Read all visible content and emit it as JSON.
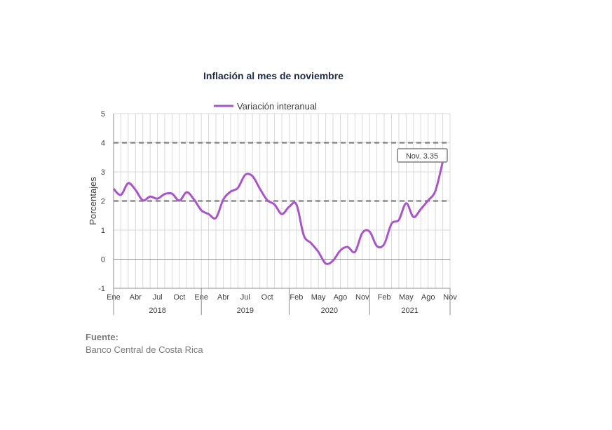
{
  "chart_data": {
    "type": "line",
    "title": "Inflación al mes de noviembre",
    "ylabel": "Porcentajes",
    "xlabel": "",
    "ylim": [
      -1,
      5
    ],
    "yticks": [
      "5",
      "4",
      "3",
      "2",
      "1",
      "0",
      "-1"
    ],
    "grid": true,
    "legend_position": "top",
    "reference_lines": [
      {
        "y": 4,
        "style": "dashed",
        "color": "#7f7f7f"
      },
      {
        "y": 2,
        "style": "dashed",
        "color": "#7f7f7f"
      }
    ],
    "month_labels": [
      "Ene",
      "Abr",
      "Jul",
      "Oct",
      "Ene",
      "Abr",
      "Jul",
      "Oct",
      "Feb",
      "May",
      "Ago",
      "Nov",
      "Feb",
      "May",
      "Ago",
      "Nov"
    ],
    "month_label_index": [
      0,
      3,
      6,
      9,
      12,
      15,
      18,
      21,
      25,
      28,
      31,
      34,
      37,
      40,
      43,
      46
    ],
    "years": [
      {
        "label": "2018",
        "start": 0,
        "end": 12
      },
      {
        "label": "2019",
        "start": 12,
        "end": 24
      },
      {
        "label": "2020",
        "start": 24,
        "end": 35
      },
      {
        "label": "2021",
        "start": 35,
        "end": 46
      }
    ],
    "series": [
      {
        "name": "Variación interanual",
        "color": "#a855c8",
        "values": [
          2.42,
          2.21,
          2.61,
          2.38,
          2.02,
          2.15,
          2.08,
          2.24,
          2.25,
          2.01,
          2.3,
          2.05,
          1.68,
          1.55,
          1.42,
          2.05,
          2.32,
          2.45,
          2.9,
          2.85,
          2.42,
          2.03,
          1.88,
          1.55,
          1.8,
          1.88,
          0.82,
          0.55,
          0.25,
          -0.15,
          -0.05,
          0.3,
          0.42,
          0.25,
          0.9,
          0.95,
          0.45,
          0.52,
          1.22,
          1.35,
          1.92,
          1.45,
          1.72,
          2.02,
          2.35,
          3.35
        ]
      }
    ],
    "annotation": {
      "text": "Nov. 3.35",
      "index": 45,
      "value": 3.35
    }
  },
  "source": {
    "label": "Fuente:",
    "text": "Banco Central de Costa Rica"
  }
}
